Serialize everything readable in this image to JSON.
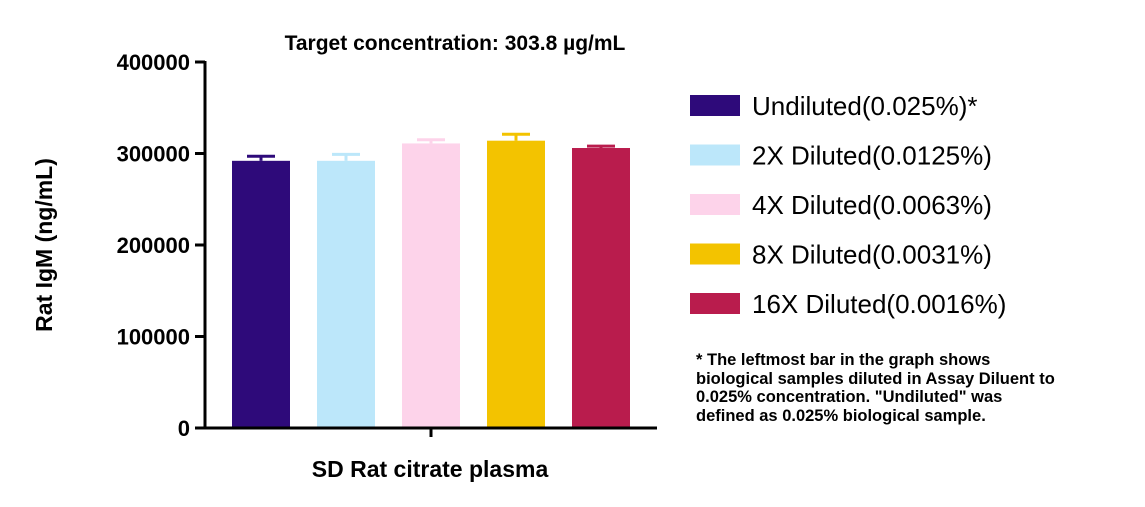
{
  "chart_data": {
    "type": "bar",
    "title": "Target concentration: 303.8 µg/mL",
    "xlabel": "SD Rat citrate plasma",
    "ylabel": "Rat IgM (ng/mL)",
    "ylim": [
      0,
      400000
    ],
    "yticks": [
      "0",
      "100000",
      "200000",
      "300000",
      "400000"
    ],
    "grid": false,
    "legend_position": "right",
    "categories": [
      "SD Rat citrate plasma"
    ],
    "series": [
      {
        "name": "Undiluted(0.025%)*",
        "value": 292000,
        "error": 5000,
        "color": "#2e0a7a"
      },
      {
        "name": "2X Diluted(0.0125%)",
        "value": 292000,
        "error": 7000,
        "color": "#bce7fa"
      },
      {
        "name": "4X Diluted(0.0063%)",
        "value": 311000,
        "error": 4000,
        "color": "#fdd3ea"
      },
      {
        "name": "8X Diluted(0.0031%)",
        "value": 314000,
        "error": 7000,
        "color": "#f3c300"
      },
      {
        "name": "16X Diluted(0.0016%)",
        "value": 306000,
        "error": 2000,
        "color": "#b91c4d"
      }
    ]
  },
  "footnote": {
    "lines": [
      "* The leftmost bar in the graph shows",
      "biological samples diluted in Assay Diluent to",
      "0.025% concentration. \"Undiluted\" was",
      "defined as 0.025% biological sample."
    ]
  }
}
